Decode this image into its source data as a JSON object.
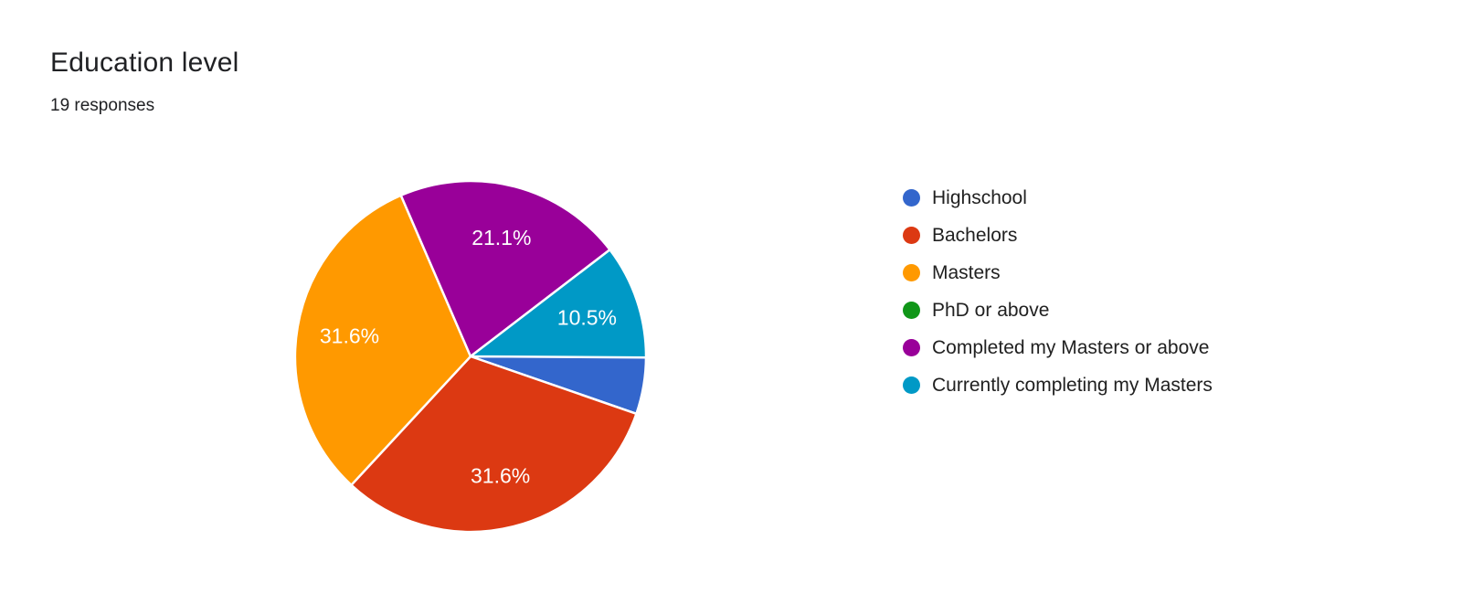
{
  "header": {
    "title": "Education level",
    "subtitle": "19 responses"
  },
  "chart_data": {
    "type": "pie",
    "title": "Education level",
    "subtitle": "19 responses",
    "total_responses": 19,
    "legend_position": "right",
    "start_angle_deg": 90,
    "direction": "clockwise",
    "slice_border_color": "#ffffff",
    "series": [
      {
        "label": "Highschool",
        "color": "#3366CC",
        "percent": 5.3,
        "count": 1,
        "slice_label": ""
      },
      {
        "label": "Bachelors",
        "color": "#DC3912",
        "percent": 31.6,
        "count": 6,
        "slice_label": "31.6%"
      },
      {
        "label": "Masters",
        "color": "#FF9900",
        "percent": 31.6,
        "count": 6,
        "slice_label": "31.6%"
      },
      {
        "label": "PhD or above",
        "color": "#109618",
        "percent": 0,
        "count": 0,
        "slice_label": ""
      },
      {
        "label": "Completed my Masters or above",
        "color": "#990099",
        "percent": 21.1,
        "count": 4,
        "slice_label": "21.1%"
      },
      {
        "label": "Currently completing my Masters",
        "color": "#0099C6",
        "percent": 10.5,
        "count": 2,
        "slice_label": "10.5%"
      }
    ]
  }
}
